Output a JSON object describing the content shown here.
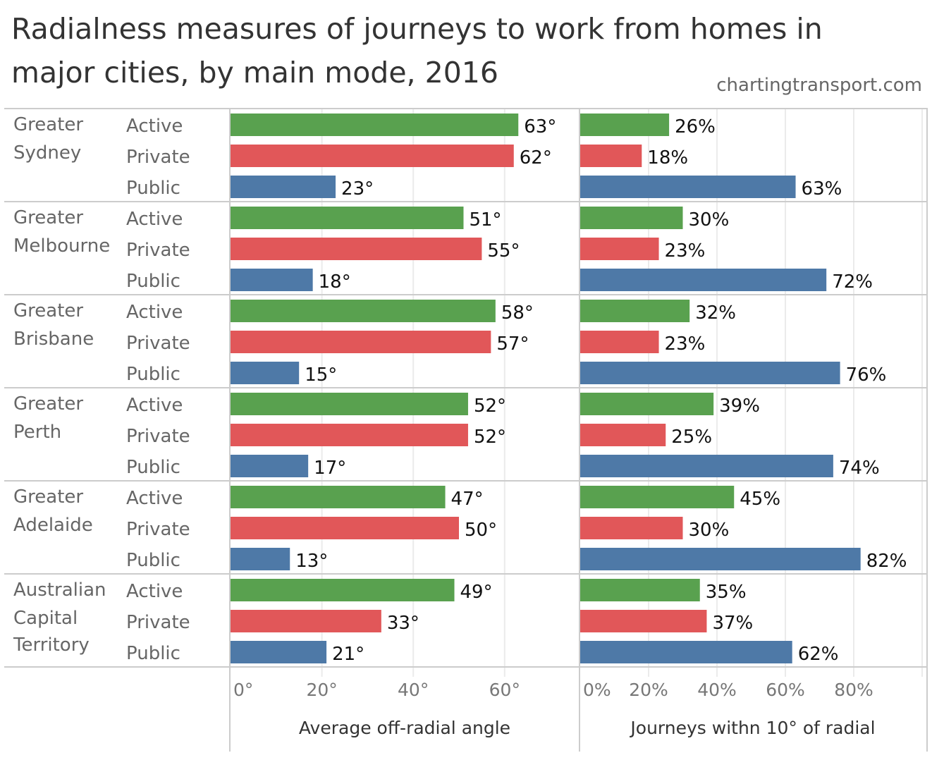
{
  "title": "Radialness measures of journeys to work from homes in major cities, by main mode, 2016",
  "source": "chartingtransport.com",
  "colors": {
    "Active": "#59a14f",
    "Private": "#e15759",
    "Public": "#4e79a7",
    "grid": "#ebebeb",
    "divider": "#cccccc"
  },
  "chart_data": [
    {
      "type": "bar",
      "orientation": "horizontal",
      "title": "",
      "xlabel": "Average off-radial angle",
      "ylabel": "",
      "xlim": [
        0,
        75
      ],
      "ticks": [
        0,
        20,
        40,
        60
      ],
      "tick_labels": [
        "0°",
        "20°",
        "40°",
        "60°"
      ],
      "unit": "°",
      "grid": true,
      "groups": [
        {
          "city": [
            "Greater",
            "Sydney"
          ],
          "values": {
            "Active": 63,
            "Private": 62,
            "Public": 23
          }
        },
        {
          "city": [
            "Greater",
            "Melbourne"
          ],
          "values": {
            "Active": 51,
            "Private": 55,
            "Public": 18
          }
        },
        {
          "city": [
            "Greater",
            "Brisbane"
          ],
          "values": {
            "Active": 58,
            "Private": 57,
            "Public": 15
          }
        },
        {
          "city": [
            "Greater",
            "Perth"
          ],
          "values": {
            "Active": 52,
            "Private": 52,
            "Public": 17
          }
        },
        {
          "city": [
            "Greater",
            "Adelaide"
          ],
          "values": {
            "Active": 47,
            "Private": 50,
            "Public": 13
          }
        },
        {
          "city": [
            "Australian",
            "Capital",
            "Territory"
          ],
          "values": {
            "Active": 49,
            "Private": 33,
            "Public": 21
          }
        }
      ]
    },
    {
      "type": "bar",
      "orientation": "horizontal",
      "title": "",
      "xlabel": "Journeys withn 10° of radial",
      "ylabel": "",
      "xlim": [
        0,
        100
      ],
      "ticks": [
        0,
        20,
        40,
        60,
        80
      ],
      "tick_labels": [
        "0%",
        "20%",
        "40%",
        "60%",
        "80%"
      ],
      "unit": "%",
      "grid": true,
      "groups": [
        {
          "city": [
            "Greater",
            "Sydney"
          ],
          "values": {
            "Active": 26,
            "Private": 18,
            "Public": 63
          }
        },
        {
          "city": [
            "Greater",
            "Melbourne"
          ],
          "values": {
            "Active": 30,
            "Private": 23,
            "Public": 72
          }
        },
        {
          "city": [
            "Greater",
            "Brisbane"
          ],
          "values": {
            "Active": 32,
            "Private": 23,
            "Public": 76
          }
        },
        {
          "city": [
            "Greater",
            "Perth"
          ],
          "values": {
            "Active": 39,
            "Private": 25,
            "Public": 74
          }
        },
        {
          "city": [
            "Greater",
            "Adelaide"
          ],
          "values": {
            "Active": 45,
            "Private": 30,
            "Public": 82
          }
        },
        {
          "city": [
            "Australian",
            "Capital",
            "Territory"
          ],
          "values": {
            "Active": 35,
            "Private": 37,
            "Public": 62
          }
        }
      ]
    }
  ],
  "modes": [
    "Active",
    "Private",
    "Public"
  ]
}
